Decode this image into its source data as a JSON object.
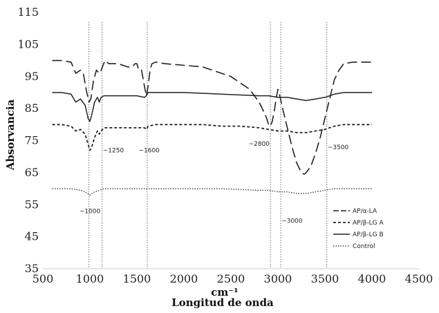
{
  "chart_data": {
    "type": "line",
    "xlabel_unit": "cm⁻¹",
    "xlabel": "Longitud de onda",
    "ylabel": "Absorvancia",
    "xlim": [
      500,
      4500
    ],
    "ylim": [
      35,
      115
    ],
    "x_ticks": [
      500,
      1000,
      1500,
      2000,
      2500,
      3000,
      3500,
      4000,
      4500
    ],
    "y_ticks": [
      35,
      45,
      55,
      65,
      75,
      85,
      95,
      105,
      115
    ],
    "grid": false,
    "legend_position": "bottom-right",
    "reference_lines": [
      {
        "x": 990,
        "label": "~1000",
        "label_x": 1000,
        "label_y": 53
      },
      {
        "x": 1130,
        "label": "~1250",
        "label_x": 1250,
        "label_y": 72
      },
      {
        "x": 1610,
        "label": "~1600",
        "label_x": 1630,
        "label_y": 72
      },
      {
        "x": 2920,
        "label": "~2800",
        "label_x": 2800,
        "label_y": 74
      },
      {
        "x": 3030,
        "label": "~3000",
        "label_x": 3150,
        "label_y": 50
      },
      {
        "x": 3520,
        "label": "~3500",
        "label_x": 3640,
        "label_y": 73
      }
    ],
    "series": [
      {
        "name": "AP/α-LA",
        "style": "longdash",
        "x": [
          600,
          700,
          800,
          850,
          900,
          930,
          960,
          990,
          1010,
          1040,
          1070,
          1100,
          1120,
          1160,
          1200,
          1300,
          1400,
          1450,
          1480,
          1500,
          1520,
          1550,
          1580,
          1600,
          1620,
          1640,
          1660,
          1700,
          1800,
          2000,
          2200,
          2400,
          2500,
          2600,
          2700,
          2750,
          2800,
          2850,
          2880,
          2900,
          2920,
          2940,
          2960,
          2980,
          3000,
          3020,
          3050,
          3100,
          3150,
          3200,
          3250,
          3280,
          3300,
          3350,
          3400,
          3450,
          3500,
          3550,
          3600,
          3650,
          3700,
          3800,
          3900,
          4000
        ],
        "y": [
          100,
          100,
          99.5,
          96,
          97,
          96,
          91,
          87,
          88,
          94,
          97,
          96,
          97,
          100,
          99,
          99,
          98,
          98,
          99,
          99,
          97,
          97,
          92,
          89,
          92,
          97,
          99,
          99.5,
          99,
          98.5,
          98,
          96,
          95,
          93,
          91,
          89,
          87,
          84,
          82,
          80,
          79.5,
          81,
          84,
          88,
          91,
          89,
          85,
          79,
          73,
          68,
          65,
          64.5,
          65,
          67,
          71,
          76,
          82,
          88,
          94,
          97,
          99,
          99.5,
          99.5,
          99.5
        ]
      },
      {
        "name": "AP/β-LG A",
        "style": "shortdash",
        "x": [
          600,
          700,
          800,
          850,
          900,
          950,
          980,
          1000,
          1020,
          1050,
          1080,
          1100,
          1120,
          1150,
          1200,
          1300,
          1400,
          1500,
          1580,
          1600,
          1620,
          1700,
          1800,
          2000,
          2200,
          2400,
          2600,
          2800,
          2900,
          3000,
          3100,
          3200,
          3300,
          3400,
          3500,
          3600,
          3700,
          3800,
          3900,
          4000
        ],
        "y": [
          80,
          80,
          79.5,
          78,
          78.5,
          77,
          74,
          72,
          73,
          76,
          78,
          77,
          78,
          79,
          79,
          79,
          79,
          79,
          79,
          78.5,
          79.5,
          80,
          80,
          80,
          80,
          79.5,
          79.5,
          79,
          78.5,
          78,
          78,
          77.5,
          77.5,
          78,
          78.5,
          79.5,
          80,
          80,
          80,
          80
        ]
      },
      {
        "name": "AP/β-LG B",
        "style": "solid",
        "x": [
          600,
          700,
          800,
          850,
          900,
          950,
          980,
          1000,
          1020,
          1050,
          1080,
          1100,
          1120,
          1150,
          1200,
          1300,
          1400,
          1500,
          1580,
          1600,
          1620,
          1700,
          2000,
          2400,
          2800,
          2900,
          3000,
          3100,
          3200,
          3300,
          3400,
          3500,
          3600,
          3700,
          3800,
          4000
        ],
        "y": [
          90,
          90,
          89.5,
          87,
          88,
          86,
          82,
          81,
          83,
          87,
          88.5,
          87,
          88.5,
          89,
          89,
          89,
          89,
          89,
          88.5,
          89,
          90,
          90,
          90,
          89.5,
          89,
          89,
          88.5,
          88.5,
          88,
          87.5,
          88,
          88.5,
          89.5,
          90,
          90,
          90
        ]
      },
      {
        "name": "Control",
        "style": "dotted",
        "x": [
          600,
          700,
          800,
          900,
          950,
          1000,
          1050,
          1100,
          1150,
          1200,
          1400,
          1600,
          1800,
          2000,
          2400,
          2800,
          2900,
          3000,
          3100,
          3200,
          3300,
          3400,
          3600,
          3800,
          4000
        ],
        "y": [
          60,
          60,
          60,
          59.5,
          59,
          58,
          59,
          59.5,
          60,
          60,
          60,
          60,
          60,
          60,
          60,
          59.5,
          59.5,
          59,
          59,
          58.5,
          58.5,
          59,
          60,
          60,
          60
        ]
      }
    ]
  }
}
